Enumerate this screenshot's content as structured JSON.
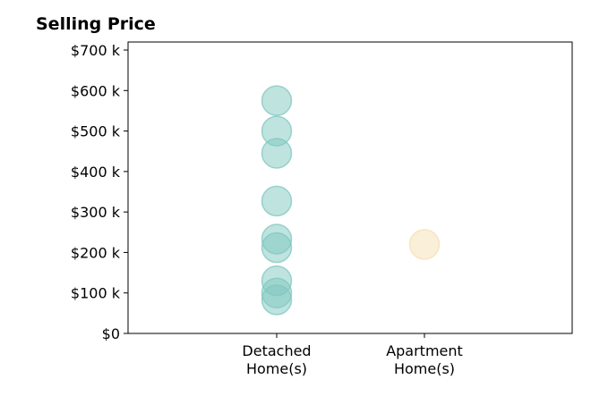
{
  "chart_data": {
    "type": "scatter",
    "title": "Selling Price",
    "xlabel": "",
    "ylabel": "",
    "ylim": [
      0,
      700000
    ],
    "y_ticks": [
      0,
      100000,
      200000,
      300000,
      400000,
      500000,
      600000,
      700000
    ],
    "y_tick_labels": [
      "$0",
      "$100 k",
      "$200 k",
      "$300 k",
      "$400 k",
      "$500 k",
      "$600 k",
      "$700 k"
    ],
    "categories": [
      "Detached Home(s)",
      "Apartment Home(s)"
    ],
    "category_labels": [
      [
        "Detached",
        "Home(s)"
      ],
      [
        "Apartment",
        "Home(s)"
      ]
    ],
    "grid": false,
    "series": [
      {
        "category": "Detached Home(s)",
        "color": "#7fc7bf",
        "values": [
          575000,
          500000,
          445000,
          327000,
          233000,
          212000,
          130000,
          100000,
          83000
        ]
      },
      {
        "category": "Apartment Home(s)",
        "color": "#f5dfb3",
        "values": [
          220000
        ]
      }
    ]
  }
}
